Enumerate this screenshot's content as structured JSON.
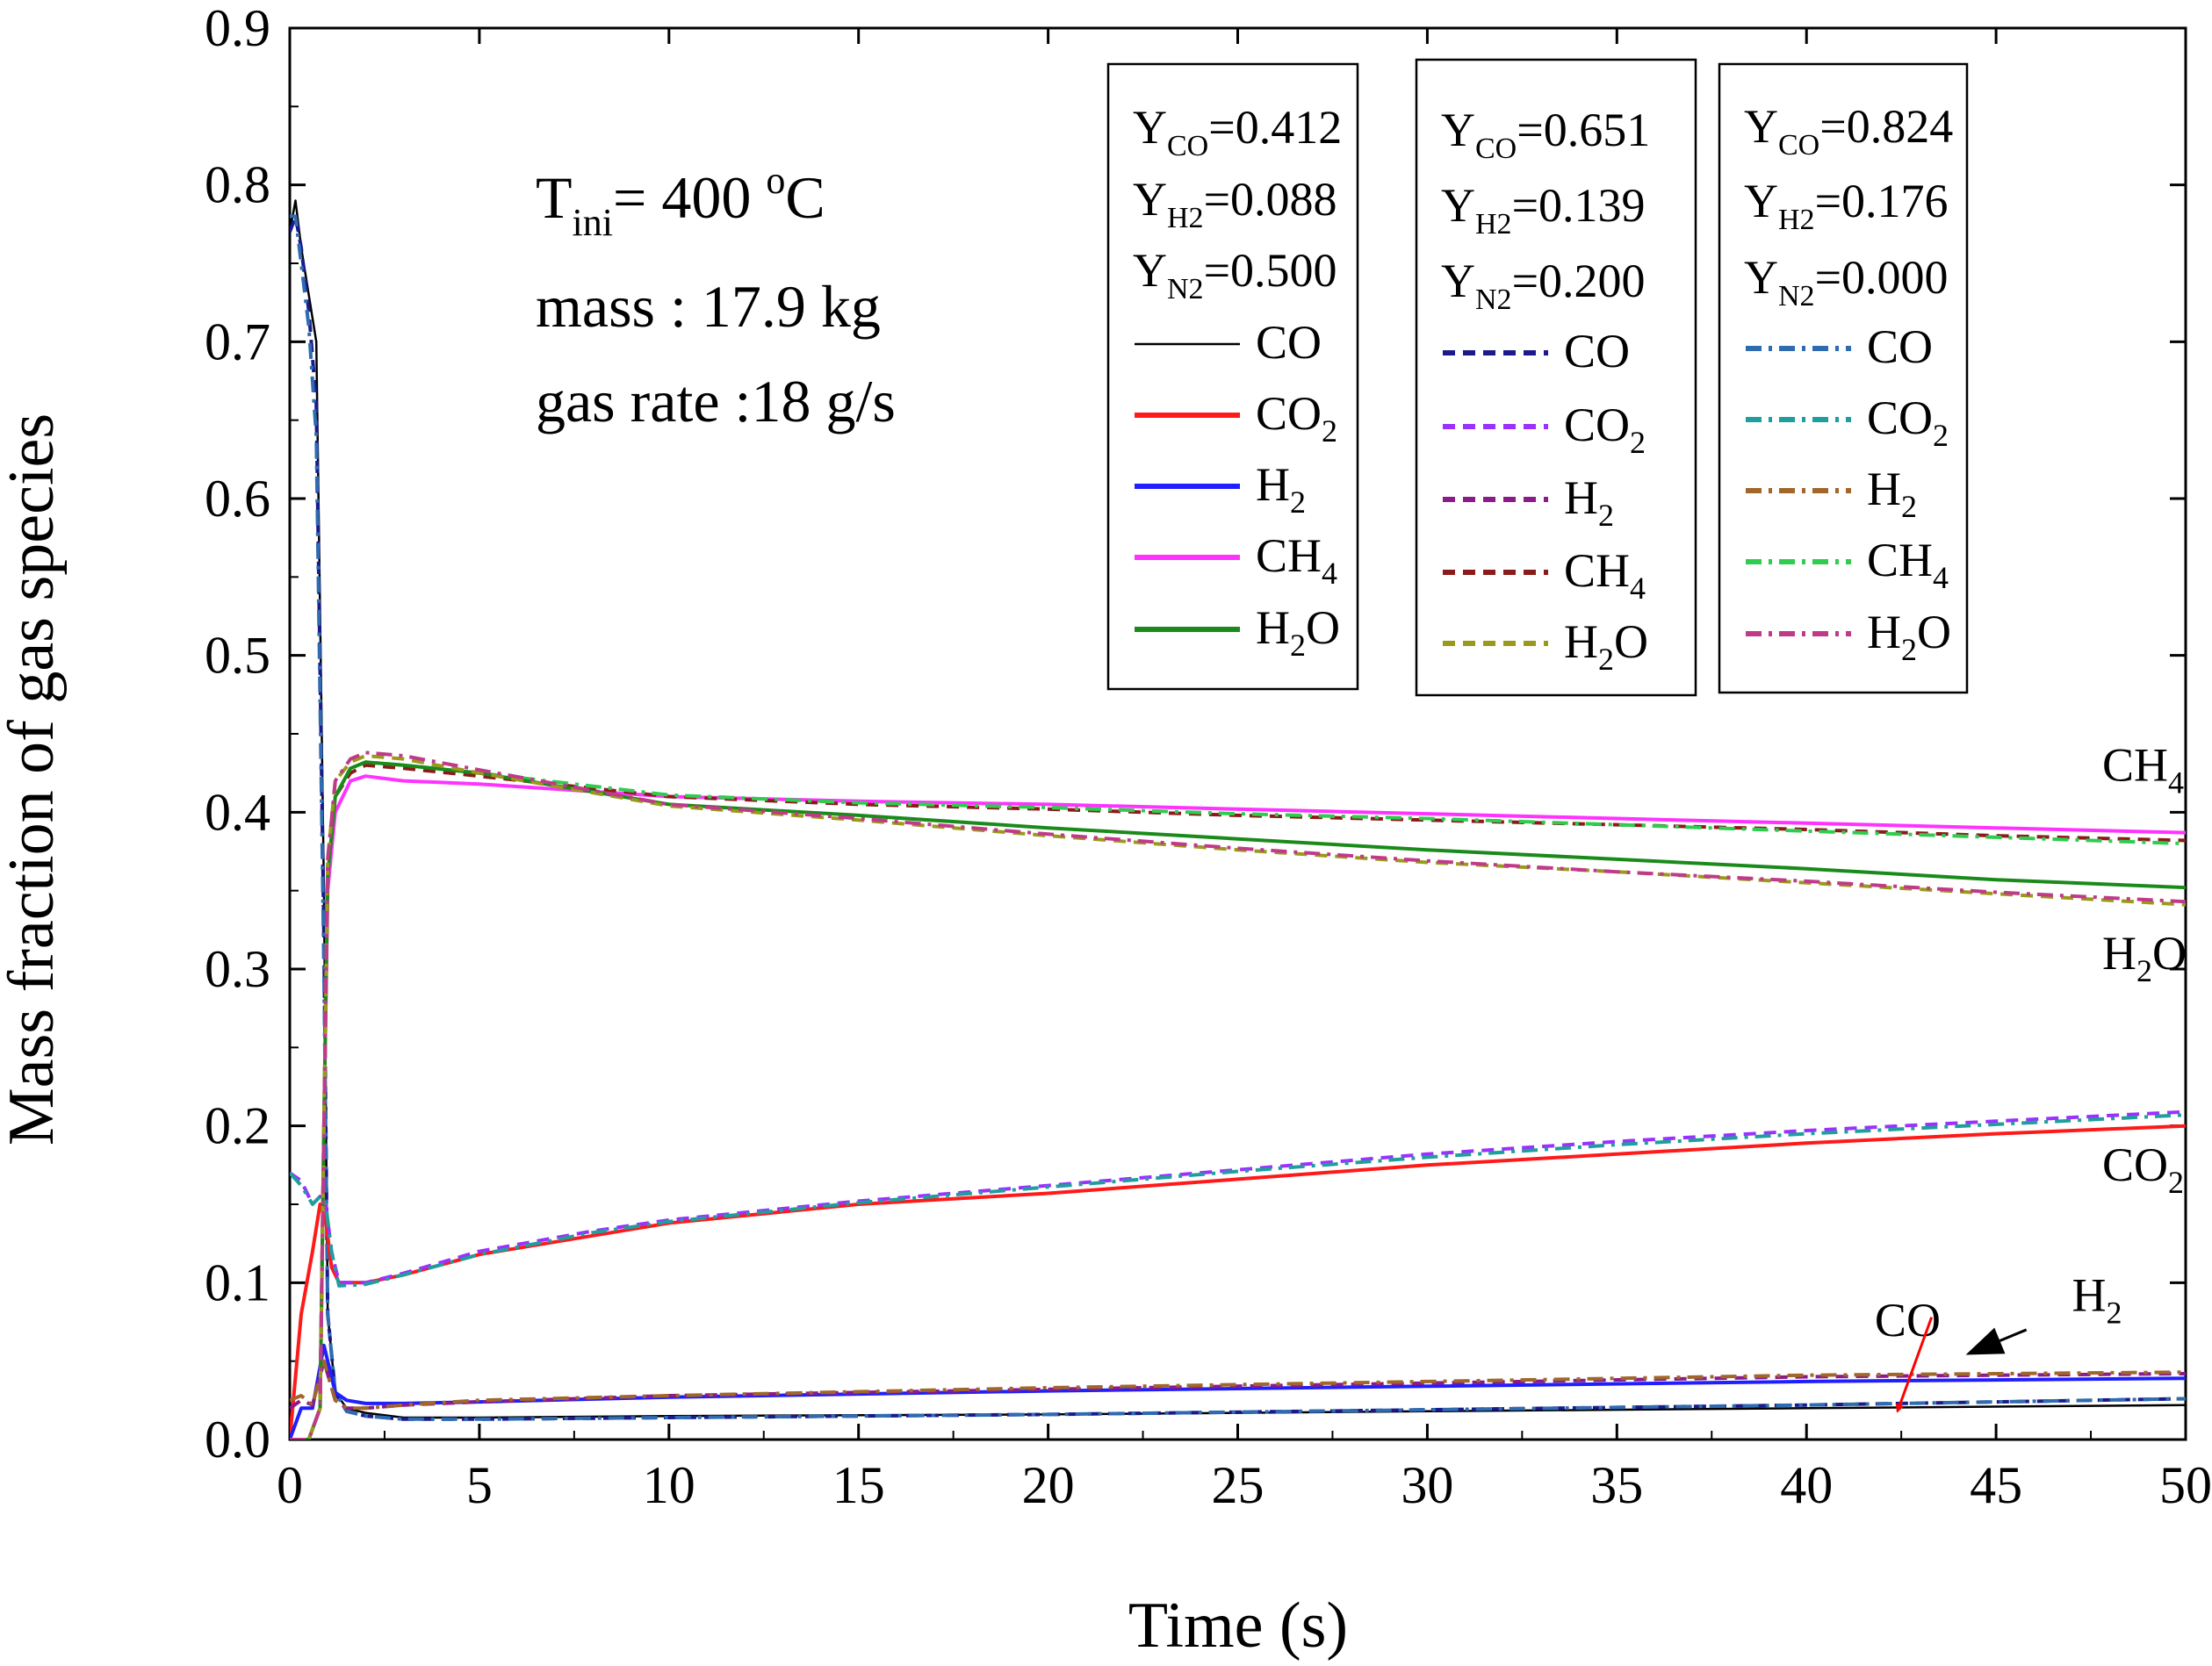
{
  "chart_data": {
    "type": "line",
    "xlabel": "Time (s)",
    "ylabel": "Mass fraction of gas species",
    "xlim": [
      0,
      50
    ],
    "ylim": [
      0,
      0.9
    ],
    "xticks": [
      "0",
      "5",
      "10",
      "15",
      "20",
      "25",
      "30",
      "35",
      "40",
      "45",
      "50"
    ],
    "yticks": [
      "0.0",
      "0.1",
      "0.2",
      "0.3",
      "0.4",
      "0.5",
      "0.6",
      "0.7",
      "0.8",
      "0.9"
    ],
    "conditions": {
      "tini_base": "T",
      "tini_sub": "ini",
      "tini_value": "= 400 ",
      "tini_deg": "o",
      "tini_unit": "C",
      "mass": "mass : 17.9 kg",
      "gas_rate": "gas rate :18 g/s"
    },
    "legends": [
      {
        "name": "case1",
        "compositions": [
          {
            "base": "Y",
            "sub": "CO",
            "value": "=0.412"
          },
          {
            "base": "Y",
            "sub": "H2",
            "value": "=0.088"
          },
          {
            "base": "Y",
            "sub": "N2",
            "value": "=0.500"
          }
        ],
        "entries": [
          {
            "label": "CO",
            "sub": "",
            "tail": "",
            "color": "#000000",
            "dash": "solid"
          },
          {
            "label": "CO",
            "sub": "2",
            "tail": "",
            "color": "#ff1a1a",
            "dash": "solid"
          },
          {
            "label": "H",
            "sub": "2",
            "tail": "",
            "color": "#1f1fff",
            "dash": "solid"
          },
          {
            "label": "CH",
            "sub": "4",
            "tail": "",
            "color": "#ff33ff",
            "dash": "solid"
          },
          {
            "label": "H",
            "sub": "2",
            "tail": "O",
            "color": "#1a8a1a",
            "dash": "solid"
          }
        ]
      },
      {
        "name": "case2",
        "compositions": [
          {
            "base": "Y",
            "sub": "CO",
            "value": "=0.651"
          },
          {
            "base": "Y",
            "sub": "H2",
            "value": "=0.139"
          },
          {
            "base": "Y",
            "sub": "N2",
            "value": "=0.200"
          }
        ],
        "entries": [
          {
            "label": "CO",
            "sub": "",
            "tail": "",
            "color": "#1a1a8c",
            "dash": "dash"
          },
          {
            "label": "CO",
            "sub": "2",
            "tail": "",
            "color": "#9b30ff",
            "dash": "dash"
          },
          {
            "label": "H",
            "sub": "2",
            "tail": "",
            "color": "#8b1a8b",
            "dash": "dash"
          },
          {
            "label": "CH",
            "sub": "4",
            "tail": "",
            "color": "#8b1a1a",
            "dash": "dash"
          },
          {
            "label": "H",
            "sub": "2",
            "tail": "O",
            "color": "#9a9a1a",
            "dash": "dash"
          }
        ]
      },
      {
        "name": "case3",
        "compositions": [
          {
            "base": "Y",
            "sub": "CO",
            "value": "=0.824"
          },
          {
            "base": "Y",
            "sub": "H2",
            "value": "=0.176"
          },
          {
            "base": "Y",
            "sub": "N2",
            "value": "=0.000"
          }
        ],
        "entries": [
          {
            "label": "CO",
            "sub": "",
            "tail": "",
            "color": "#2f6bb0",
            "dash": "dashdot"
          },
          {
            "label": "CO",
            "sub": "2",
            "tail": "",
            "color": "#1f9e9e",
            "dash": "dashdot"
          },
          {
            "label": "H",
            "sub": "2",
            "tail": "",
            "color": "#a0662a",
            "dash": "dashdot"
          },
          {
            "label": "CH",
            "sub": "4",
            "tail": "",
            "color": "#2fcc4f",
            "dash": "dashdot"
          },
          {
            "label": "H",
            "sub": "2",
            "tail": "O",
            "color": "#c03a8a",
            "dash": "dashdot"
          }
        ]
      }
    ],
    "annotations": [
      {
        "name": "ch4",
        "label": "CH",
        "sub": "4",
        "tail": "",
        "x": 47.8,
        "y": 0.42
      },
      {
        "name": "h2o",
        "label": "H",
        "sub": "2",
        "tail": "O",
        "x": 47.8,
        "y": 0.3
      },
      {
        "name": "co2",
        "label": "CO",
        "sub": "2",
        "tail": "",
        "x": 47.8,
        "y": 0.165
      },
      {
        "name": "h2",
        "label": "H",
        "sub": "2",
        "tail": "",
        "x": 47.0,
        "y": 0.082
      },
      {
        "name": "co",
        "label": "CO",
        "sub": "",
        "tail": "",
        "x": 41.8,
        "y": 0.066
      }
    ],
    "arrows": [
      {
        "name": "co-arrow",
        "color": "#ff0000",
        "from": [
          43.3,
          0.078
        ],
        "to": [
          42.4,
          0.018
        ]
      },
      {
        "name": "h2-arrow",
        "color": "#000000",
        "from": [
          45.8,
          0.07
        ],
        "to": [
          44.2,
          0.054
        ]
      }
    ],
    "series": [
      {
        "name": "CO (Y_CO=0.412)",
        "color": "#000000",
        "dash": "solid",
        "width": 2.5,
        "x": [
          0,
          0.15,
          0.3,
          0.5,
          0.7,
          0.9,
          1.0,
          1.2,
          1.5,
          2,
          3,
          5,
          10,
          20,
          30,
          40,
          45,
          50
        ],
        "y": [
          0.77,
          0.79,
          0.76,
          0.73,
          0.7,
          0.35,
          0.08,
          0.03,
          0.02,
          0.017,
          0.014,
          0.014,
          0.015,
          0.016,
          0.018,
          0.02,
          0.021,
          0.022
        ]
      },
      {
        "name": "CO (Y_CO=0.651)",
        "color": "#1a1a8c",
        "dash": "dash",
        "width": 4,
        "x": [
          0,
          0.15,
          0.3,
          0.5,
          0.7,
          0.9,
          1.0,
          1.2,
          1.5,
          2,
          3,
          5,
          10,
          20,
          30,
          40,
          45,
          50
        ],
        "y": [
          0.77,
          0.78,
          0.76,
          0.72,
          0.66,
          0.32,
          0.08,
          0.03,
          0.018,
          0.015,
          0.013,
          0.013,
          0.014,
          0.016,
          0.019,
          0.022,
          0.024,
          0.026
        ]
      },
      {
        "name": "CO (Y_CO=0.824)",
        "color": "#2f6bb0",
        "dash": "dashdot",
        "width": 4,
        "x": [
          0,
          0.15,
          0.3,
          0.5,
          0.7,
          0.9,
          1.0,
          1.2,
          1.5,
          2,
          3,
          5,
          10,
          20,
          30,
          40,
          45,
          50
        ],
        "y": [
          0.78,
          0.78,
          0.75,
          0.71,
          0.64,
          0.3,
          0.08,
          0.03,
          0.018,
          0.015,
          0.013,
          0.013,
          0.014,
          0.016,
          0.019,
          0.022,
          0.024,
          0.026
        ]
      },
      {
        "name": "CO2 (Y_CO=0.412)",
        "color": "#ff1a1a",
        "dash": "solid",
        "width": 4,
        "x": [
          0,
          0.3,
          0.6,
          0.8,
          0.95,
          1.1,
          1.3,
          2,
          3,
          5,
          8,
          10,
          15,
          20,
          25,
          30,
          35,
          40,
          45,
          50
        ],
        "y": [
          0.0,
          0.08,
          0.12,
          0.15,
          0.14,
          0.11,
          0.1,
          0.1,
          0.105,
          0.118,
          0.13,
          0.138,
          0.15,
          0.157,
          0.166,
          0.175,
          0.182,
          0.189,
          0.195,
          0.2
        ]
      },
      {
        "name": "CO2 (Y_CO=0.651)",
        "color": "#9b30ff",
        "dash": "dash",
        "width": 4,
        "x": [
          0,
          0.3,
          0.6,
          0.8,
          0.95,
          1.1,
          1.3,
          2,
          3,
          5,
          8,
          10,
          15,
          20,
          25,
          30,
          35,
          40,
          45,
          50
        ],
        "y": [
          0.17,
          0.165,
          0.15,
          0.155,
          0.15,
          0.12,
          0.1,
          0.1,
          0.106,
          0.12,
          0.133,
          0.14,
          0.152,
          0.162,
          0.172,
          0.182,
          0.19,
          0.197,
          0.203,
          0.209
        ]
      },
      {
        "name": "CO2 (Y_CO=0.824)",
        "color": "#1f9e9e",
        "dash": "dashdot",
        "width": 4,
        "x": [
          0,
          0.3,
          0.6,
          0.8,
          0.95,
          1.1,
          1.3,
          2,
          3,
          5,
          8,
          10,
          15,
          20,
          25,
          30,
          35,
          40,
          45,
          50
        ],
        "y": [
          0.17,
          0.162,
          0.15,
          0.155,
          0.15,
          0.12,
          0.098,
          0.099,
          0.105,
          0.118,
          0.132,
          0.139,
          0.151,
          0.161,
          0.171,
          0.18,
          0.188,
          0.195,
          0.201,
          0.207
        ]
      },
      {
        "name": "H2 (Y_CO=0.412)",
        "color": "#1f1fff",
        "dash": "solid",
        "width": 4,
        "x": [
          0,
          0.3,
          0.6,
          0.9,
          1.2,
          1.5,
          2,
          3,
          5,
          10,
          20,
          30,
          40,
          45,
          50
        ],
        "y": [
          0.0,
          0.02,
          0.02,
          0.06,
          0.03,
          0.025,
          0.023,
          0.023,
          0.024,
          0.027,
          0.031,
          0.034,
          0.037,
          0.038,
          0.039
        ]
      },
      {
        "name": "H2 (Y_CO=0.651)",
        "color": "#8b1a8b",
        "dash": "dash",
        "width": 4,
        "x": [
          0,
          0.3,
          0.6,
          0.9,
          1.2,
          1.5,
          2,
          3,
          5,
          10,
          20,
          30,
          40,
          45,
          50
        ],
        "y": [
          0.02,
          0.025,
          0.022,
          0.05,
          0.025,
          0.02,
          0.02,
          0.022,
          0.024,
          0.028,
          0.032,
          0.036,
          0.04,
          0.041,
          0.042
        ]
      },
      {
        "name": "H2 (Y_CO=0.824)",
        "color": "#a0662a",
        "dash": "dashdot",
        "width": 4,
        "x": [
          0,
          0.3,
          0.6,
          0.9,
          1.2,
          1.5,
          2,
          3,
          5,
          10,
          20,
          30,
          40,
          45,
          50
        ],
        "y": [
          0.025,
          0.028,
          0.022,
          0.05,
          0.025,
          0.02,
          0.02,
          0.022,
          0.025,
          0.028,
          0.033,
          0.037,
          0.041,
          0.042,
          0.043
        ]
      },
      {
        "name": "CH4 (Y_CO=0.412)",
        "color": "#ff33ff",
        "dash": "solid",
        "width": 4,
        "x": [
          0,
          0.5,
          0.8,
          0.9,
          1.0,
          1.2,
          1.6,
          2,
          3,
          5,
          10,
          15,
          20,
          25,
          30,
          35,
          40,
          45,
          50
        ],
        "y": [
          0.0,
          0.0,
          0.02,
          0.2,
          0.35,
          0.4,
          0.42,
          0.423,
          0.42,
          0.418,
          0.41,
          0.407,
          0.405,
          0.402,
          0.399,
          0.396,
          0.393,
          0.39,
          0.387
        ]
      },
      {
        "name": "CH4 (Y_CO=0.651)",
        "color": "#8b1a1a",
        "dash": "dash",
        "width": 4,
        "x": [
          0,
          0.5,
          0.8,
          0.9,
          1.0,
          1.2,
          1.6,
          2,
          3,
          5,
          10,
          15,
          20,
          25,
          30,
          35,
          40,
          45,
          50
        ],
        "y": [
          0.0,
          0.0,
          0.02,
          0.2,
          0.36,
          0.41,
          0.425,
          0.43,
          0.428,
          0.423,
          0.41,
          0.405,
          0.402,
          0.398,
          0.395,
          0.392,
          0.389,
          0.385,
          0.382
        ]
      },
      {
        "name": "CH4 (Y_CO=0.824)",
        "color": "#2fcc4f",
        "dash": "dashdot",
        "width": 4,
        "x": [
          0,
          0.5,
          0.8,
          0.9,
          1.0,
          1.2,
          1.6,
          2,
          3,
          5,
          10,
          15,
          20,
          25,
          30,
          35,
          40,
          45,
          50
        ],
        "y": [
          0.0,
          0.0,
          0.02,
          0.2,
          0.36,
          0.41,
          0.428,
          0.432,
          0.43,
          0.425,
          0.411,
          0.406,
          0.403,
          0.399,
          0.396,
          0.392,
          0.388,
          0.384,
          0.38
        ]
      },
      {
        "name": "H2O (Y_CO=0.412)",
        "color": "#1a8a1a",
        "dash": "solid",
        "width": 4,
        "x": [
          0,
          0.5,
          0.8,
          0.9,
          1.0,
          1.2,
          1.6,
          2,
          3,
          5,
          10,
          15,
          20,
          25,
          30,
          35,
          40,
          45,
          50
        ],
        "y": [
          0.0,
          0.0,
          0.02,
          0.2,
          0.36,
          0.41,
          0.428,
          0.432,
          0.43,
          0.425,
          0.405,
          0.398,
          0.39,
          0.383,
          0.376,
          0.37,
          0.364,
          0.357,
          0.352
        ]
      },
      {
        "name": "H2O (Y_CO=0.651)",
        "color": "#9a9a1a",
        "dash": "dash",
        "width": 4,
        "x": [
          0,
          0.5,
          0.8,
          0.9,
          1.0,
          1.2,
          1.6,
          2,
          3,
          5,
          10,
          15,
          20,
          25,
          30,
          35,
          40,
          45,
          50
        ],
        "y": [
          0.0,
          0.0,
          0.02,
          0.2,
          0.37,
          0.42,
          0.432,
          0.436,
          0.434,
          0.425,
          0.404,
          0.395,
          0.385,
          0.376,
          0.368,
          0.362,
          0.355,
          0.348,
          0.341
        ]
      },
      {
        "name": "H2O (Y_CO=0.824)",
        "color": "#c03a8a",
        "dash": "dashdot",
        "width": 4,
        "x": [
          0,
          0.5,
          0.8,
          0.9,
          1.0,
          1.2,
          1.6,
          2,
          3,
          5,
          10,
          15,
          20,
          25,
          30,
          35,
          40,
          45,
          50
        ],
        "y": [
          0.0,
          0.0,
          0.02,
          0.2,
          0.37,
          0.42,
          0.434,
          0.438,
          0.436,
          0.427,
          0.405,
          0.396,
          0.386,
          0.377,
          0.369,
          0.362,
          0.356,
          0.349,
          0.343
        ]
      }
    ]
  }
}
